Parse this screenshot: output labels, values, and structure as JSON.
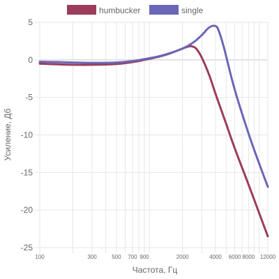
{
  "chart_data": {
    "type": "line",
    "title": "",
    "xlabel": "Частота, Гц",
    "ylabel": "Усиление, Дб",
    "x_scale": "log",
    "xlim": [
      100,
      12000
    ],
    "ylim": [
      -25,
      5
    ],
    "y_ticks": [
      5,
      0,
      -5,
      -10,
      -15,
      -20,
      -25
    ],
    "x_ticks": [
      {
        "value": 100,
        "label": "100"
      },
      {
        "value": 300,
        "label": "300"
      },
      {
        "value": 500,
        "label": "500"
      },
      {
        "value": 700,
        "label": "700"
      },
      {
        "value": 900,
        "label": "900"
      },
      {
        "value": 2000,
        "label": "2000"
      },
      {
        "value": 4000,
        "label": "4000"
      },
      {
        "value": 6000,
        "label": "6000"
      },
      {
        "value": 8000,
        "label": "8000"
      },
      {
        "value": 12000,
        "label": "12000"
      }
    ],
    "x_grid": [
      100,
      200,
      300,
      400,
      500,
      600,
      700,
      800,
      900,
      1000,
      2000,
      3000,
      4000,
      5000,
      6000,
      7000,
      8000,
      9000,
      10000,
      12000
    ],
    "grid": true,
    "legend": "top",
    "series": [
      {
        "name": "humbucker",
        "color": "#9b3c5a",
        "x": [
          100,
          150,
          200,
          300,
          500,
          700,
          900,
          1200,
          1500,
          2000,
          2300,
          2500,
          2700,
          3000,
          3500,
          4000,
          5000,
          6000,
          8000,
          10000,
          12000
        ],
        "y": [
          -0.5,
          -0.6,
          -0.65,
          -0.65,
          -0.55,
          -0.3,
          0.0,
          0.4,
          0.8,
          1.5,
          1.8,
          1.75,
          1.4,
          0.3,
          -2.0,
          -4.5,
          -8.5,
          -11.8,
          -16.6,
          -20.4,
          -23.5
        ]
      },
      {
        "name": "single",
        "color": "#6a66b8",
        "x": [
          100,
          150,
          200,
          300,
          500,
          700,
          900,
          1200,
          1500,
          2000,
          2500,
          3000,
          3500,
          4000,
          4300,
          4700,
          5000,
          6000,
          8000,
          10000,
          12000
        ],
        "y": [
          -0.25,
          -0.3,
          -0.35,
          -0.4,
          -0.35,
          -0.15,
          0.1,
          0.45,
          0.85,
          1.5,
          2.3,
          3.3,
          4.3,
          4.5,
          3.8,
          2.0,
          0.5,
          -4.0,
          -9.8,
          -13.8,
          -16.9
        ]
      }
    ]
  }
}
